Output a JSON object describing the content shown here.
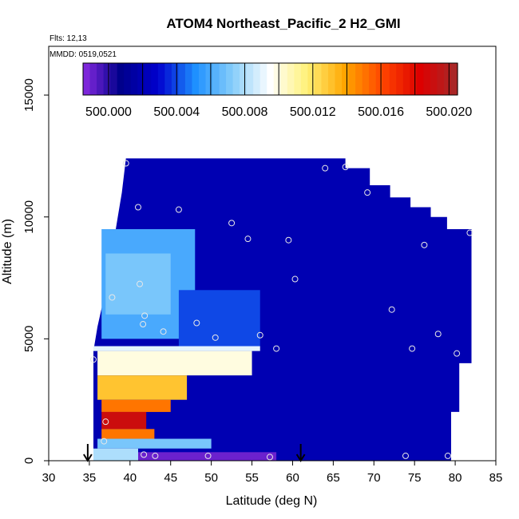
{
  "chart_data": {
    "type": "heatmap",
    "title": "ATOM4 Northeast_Pacific_2 H2_GMI",
    "flights_text": "Flts: 12,13",
    "dates_text": "MMDD: 0519,0521",
    "xlabel": "Latitude (deg N)",
    "ylabel": "Altitude (m)",
    "xlim": [
      30,
      85
    ],
    "ylim": [
      0,
      17000
    ],
    "x_ticks": [
      "30",
      "35",
      "40",
      "45",
      "50",
      "55",
      "60",
      "65",
      "70",
      "75",
      "80",
      "85"
    ],
    "y_ticks": [
      "0",
      "5000",
      "10000",
      "15000"
    ],
    "colorbar": {
      "min": 499.9985,
      "max": 500.0205,
      "tick_labels": [
        "500.000",
        "500.004",
        "500.008",
        "500.012",
        "500.016",
        "500.020"
      ],
      "tick_values": [
        500.0,
        500.004,
        500.008,
        500.012,
        500.016,
        500.02
      ],
      "colors": [
        "#8a2be2",
        "#00008b",
        "#0000cd",
        "#1e90ff",
        "#87cefa",
        "#ffffff",
        "#fff176",
        "#ffa500",
        "#ff4500",
        "#dd0000",
        "#a52a2a"
      ]
    },
    "arrows_lat": [
      34.8,
      61.0
    ],
    "background_value": 500.002,
    "top_envelope": [
      [
        35.5,
        4500
      ],
      [
        36,
        5500
      ],
      [
        37,
        7000
      ],
      [
        37.5,
        8200
      ],
      [
        38,
        9000
      ],
      [
        38.5,
        10000
      ],
      [
        39,
        11000
      ],
      [
        39.5,
        12400
      ],
      [
        66.5,
        12400
      ],
      [
        66.5,
        12000
      ],
      [
        69.5,
        12000
      ],
      [
        69.5,
        11300
      ],
      [
        72,
        11300
      ],
      [
        72,
        10800
      ],
      [
        74.5,
        10800
      ],
      [
        74.5,
        10400
      ],
      [
        77,
        10400
      ],
      [
        77,
        10000
      ],
      [
        79,
        10000
      ],
      [
        79,
        9500
      ],
      [
        82,
        9500
      ],
      [
        82,
        4000
      ],
      [
        80.5,
        4000
      ],
      [
        80.5,
        2000
      ],
      [
        79.5,
        2000
      ],
      [
        79.5,
        0
      ],
      [
        35.5,
        0
      ]
    ],
    "field_patches": [
      {
        "lat": [
          35.5,
          56
        ],
        "alt": [
          4500,
          4700
        ],
        "value": 500.009
      },
      {
        "lat": [
          36,
          55
        ],
        "alt": [
          3500,
          4500
        ],
        "value": 500.01
      },
      {
        "lat": [
          36,
          47
        ],
        "alt": [
          2500,
          3500
        ],
        "value": 500.013
      },
      {
        "lat": [
          36.5,
          45
        ],
        "alt": [
          2000,
          2500
        ],
        "value": 500.015
      },
      {
        "lat": [
          36.5,
          42
        ],
        "alt": [
          1300,
          2000
        ],
        "value": 500.019
      },
      {
        "lat": [
          36.5,
          43
        ],
        "alt": [
          900,
          1300
        ],
        "value": 500.015
      },
      {
        "lat": [
          36,
          50
        ],
        "alt": [
          500,
          900
        ],
        "value": 500.007
      },
      {
        "lat": [
          35.5,
          41
        ],
        "alt": [
          0,
          500
        ],
        "value": 500.008
      },
      {
        "lat": [
          41,
          58
        ],
        "alt": [
          0,
          350
        ],
        "value": 499.999
      },
      {
        "lat": [
          36.5,
          48
        ],
        "alt": [
          5000,
          9500
        ],
        "value": 500.006
      },
      {
        "lat": [
          37,
          45
        ],
        "alt": [
          6000,
          8500
        ],
        "value": 500.007
      },
      {
        "lat": [
          46,
          56
        ],
        "alt": [
          4700,
          7000
        ],
        "value": 500.004
      }
    ],
    "sample_points": [
      {
        "lat": 39.5,
        "alt": 12200
      },
      {
        "lat": 64,
        "alt": 12000
      },
      {
        "lat": 66.5,
        "alt": 12050
      },
      {
        "lat": 41,
        "alt": 10400
      },
      {
        "lat": 46,
        "alt": 10300
      },
      {
        "lat": 69.2,
        "alt": 11000
      },
      {
        "lat": 52.5,
        "alt": 9750
      },
      {
        "lat": 54.5,
        "alt": 9100
      },
      {
        "lat": 59.5,
        "alt": 9050
      },
      {
        "lat": 81.8,
        "alt": 9350
      },
      {
        "lat": 76.2,
        "alt": 8850
      },
      {
        "lat": 37.8,
        "alt": 6700
      },
      {
        "lat": 41.2,
        "alt": 7250
      },
      {
        "lat": 60.3,
        "alt": 7450
      },
      {
        "lat": 72.2,
        "alt": 6200
      },
      {
        "lat": 41.8,
        "alt": 5950
      },
      {
        "lat": 41.6,
        "alt": 5600
      },
      {
        "lat": 48.2,
        "alt": 5650
      },
      {
        "lat": 44.1,
        "alt": 5300
      },
      {
        "lat": 50.5,
        "alt": 5050
      },
      {
        "lat": 56,
        "alt": 5150
      },
      {
        "lat": 58,
        "alt": 4600
      },
      {
        "lat": 77.9,
        "alt": 5200
      },
      {
        "lat": 74.7,
        "alt": 4600
      },
      {
        "lat": 80.2,
        "alt": 4400
      },
      {
        "lat": 35.5,
        "alt": 4150
      },
      {
        "lat": 37,
        "alt": 1600
      },
      {
        "lat": 36.8,
        "alt": 800
      },
      {
        "lat": 41.7,
        "alt": 250
      },
      {
        "lat": 43.1,
        "alt": 200
      },
      {
        "lat": 49.6,
        "alt": 200
      },
      {
        "lat": 57.2,
        "alt": 150
      },
      {
        "lat": 73.9,
        "alt": 200
      },
      {
        "lat": 79.1,
        "alt": 200
      }
    ]
  }
}
